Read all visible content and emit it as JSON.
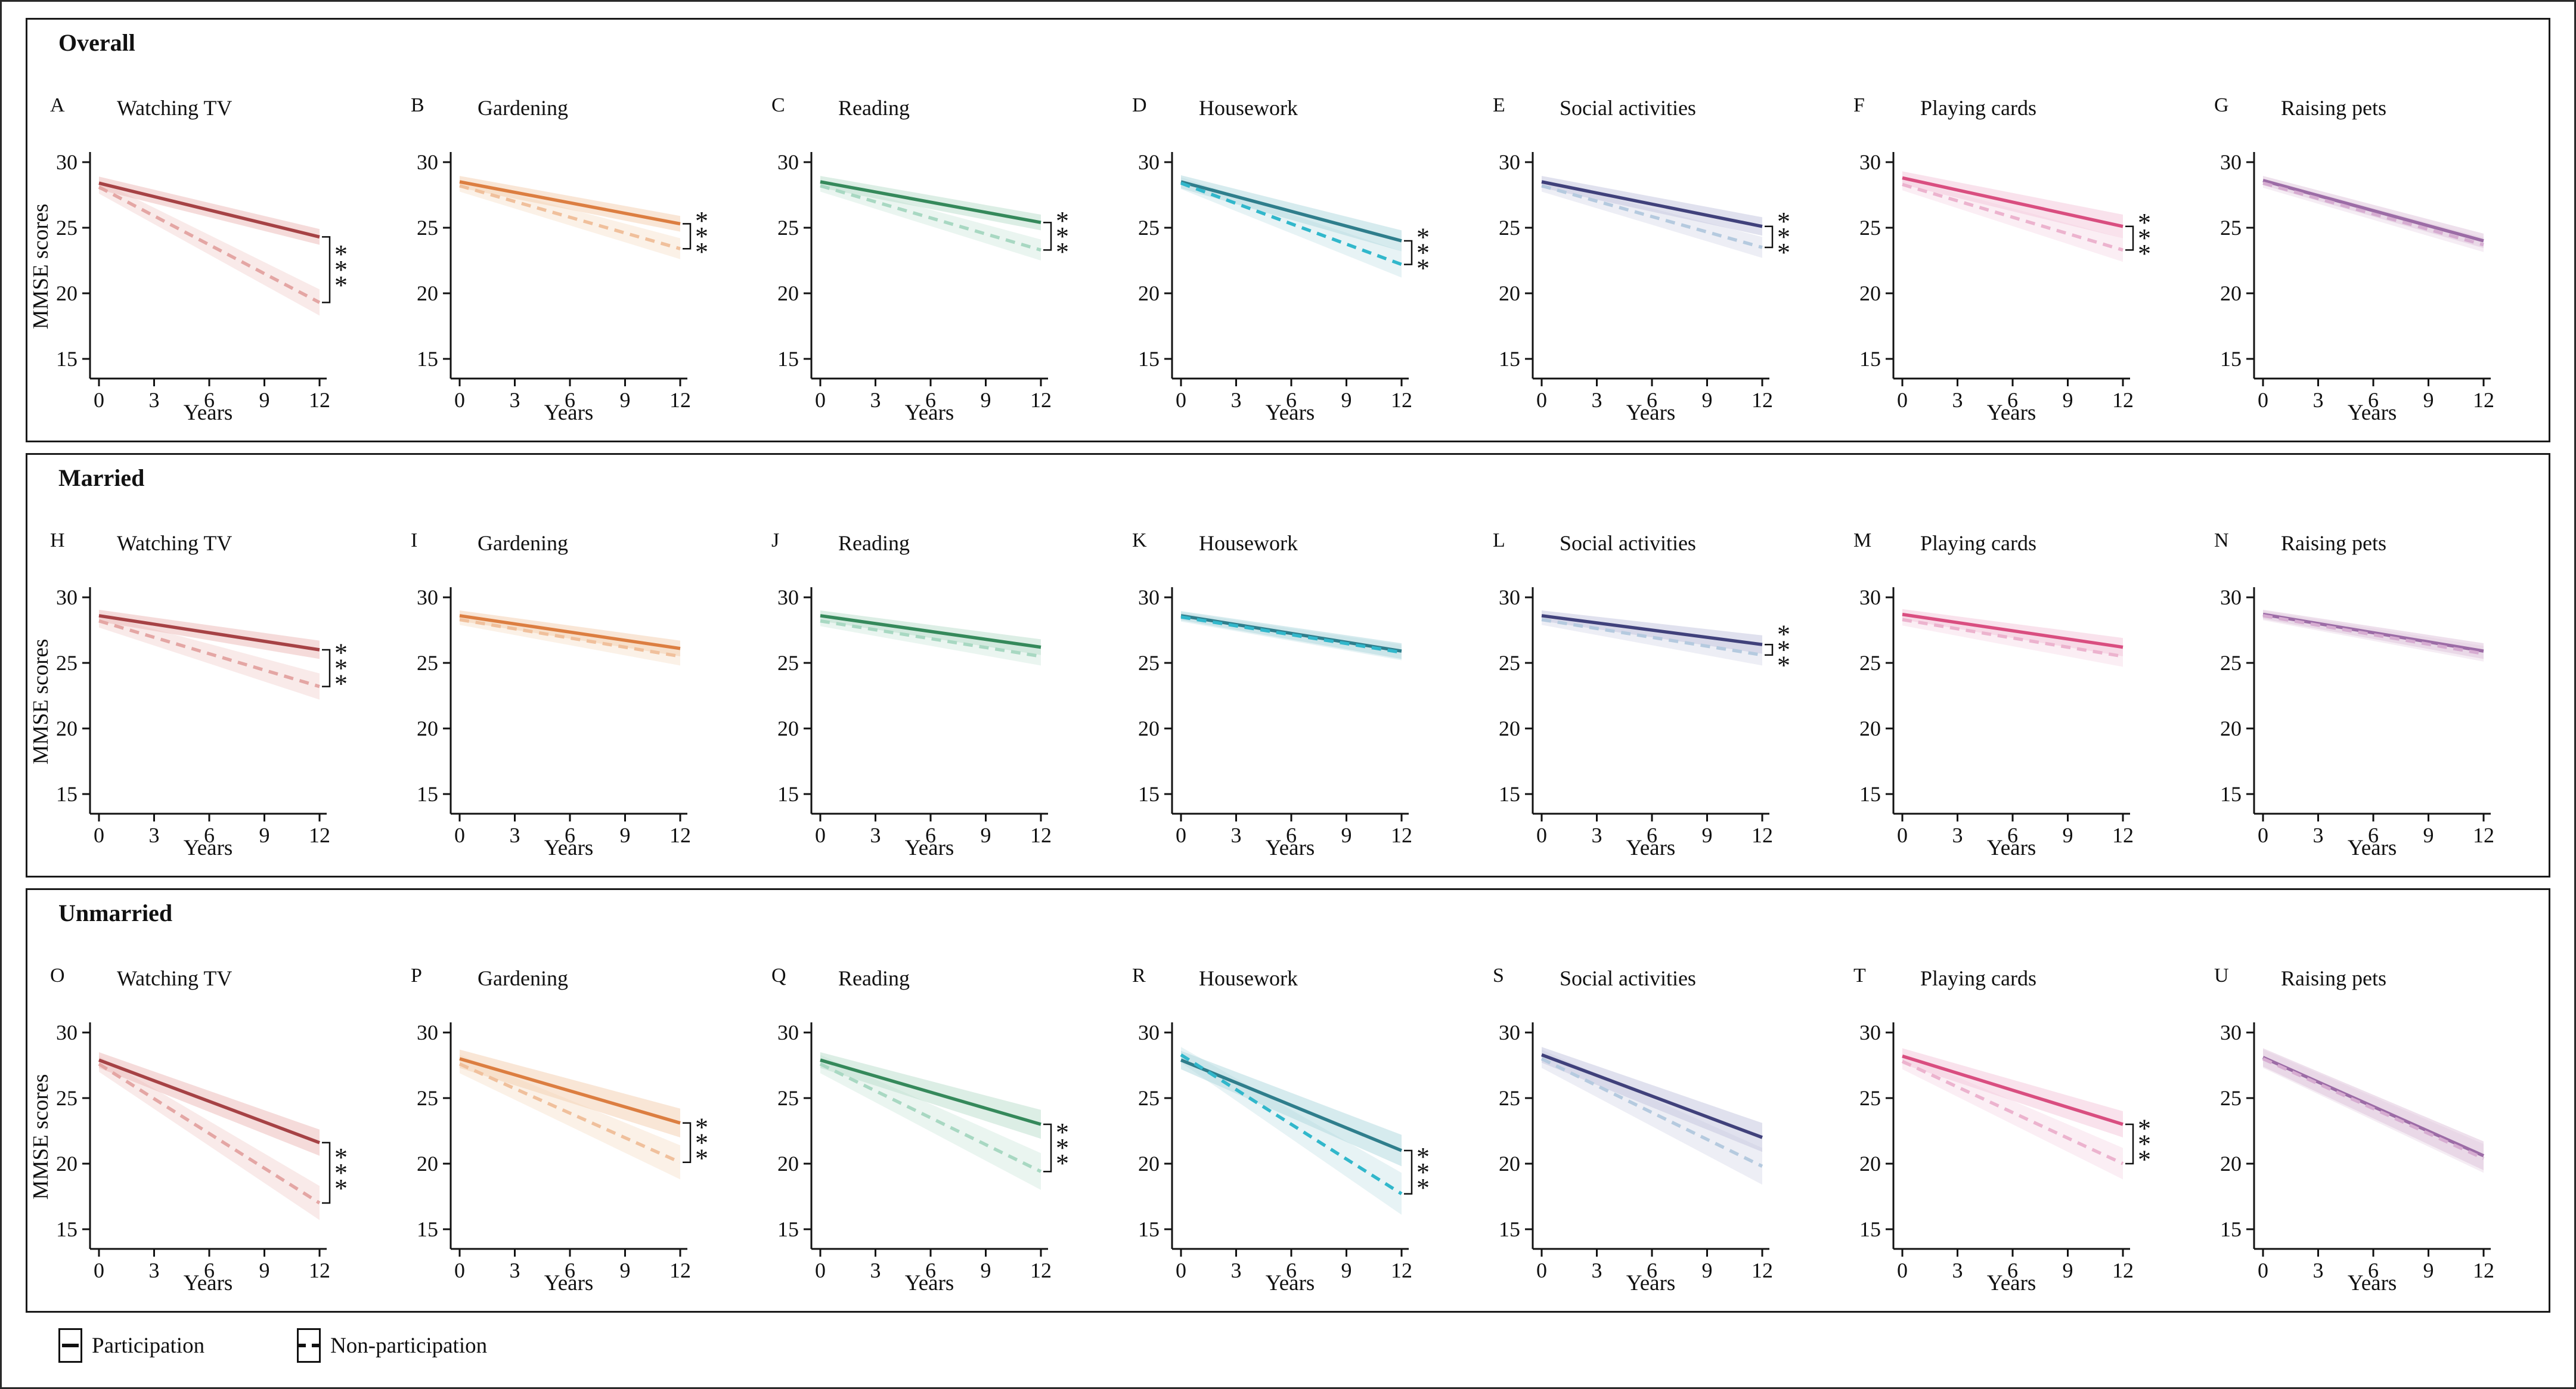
{
  "legend": [
    {
      "label": "Participation",
      "style": "solid"
    },
    {
      "label": "Non-participation",
      "style": "dashed"
    }
  ],
  "palette": {
    "watching_tv": {
      "solid": "#A64245",
      "dashed": "#E4A6A4",
      "band": "#ECBDBB"
    },
    "gardening": {
      "solid": "#DC7E41",
      "dashed": "#F0C09C",
      "band": "#F4D2B4"
    },
    "reading": {
      "solid": "#35895B",
      "dashed": "#A8D8C2",
      "band": "#BFE0CF"
    },
    "housework": {
      "solid": "#2F7E8C",
      "dashed": "#31B7CB",
      "band": "#B5DAE0"
    },
    "social": {
      "solid": "#40417B",
      "dashed": "#B5CADF",
      "band": "#C6C9E0"
    },
    "playing_cards": {
      "solid": "#D94E80",
      "dashed": "#ECB3CE",
      "band": "#F4CBDD"
    },
    "raising_pets": {
      "solid": "#9C6CA6",
      "dashed": "#D6ACD1",
      "band": "#E0C6DD"
    }
  },
  "chart_data": {
    "type": "line",
    "xlabel": "Years",
    "ylabel": "MMSE scores",
    "x_ticks": [
      0,
      3,
      6,
      9,
      12
    ],
    "y_ticks": [
      15,
      20,
      25,
      30
    ],
    "x_range": [
      0,
      12
    ],
    "y_range": [
      15,
      30
    ],
    "series_styles": [
      "Participation (solid)",
      "Non-participation (dashed)"
    ],
    "sections": [
      {
        "label": "Overall",
        "panels": [
          {
            "letter": "A",
            "title": "Watching TV",
            "palette": "watching_tv",
            "participation": {
              "start": 28.4,
              "end": 24.3,
              "ci_start": 0.5,
              "ci_end": 0.6
            },
            "non_participation": {
              "start": 28.1,
              "end": 19.3,
              "ci_start": 0.5,
              "ci_end": 1.0
            },
            "significance": "***"
          },
          {
            "letter": "B",
            "title": "Gardening",
            "palette": "gardening",
            "participation": {
              "start": 28.5,
              "end": 25.3,
              "ci_start": 0.45,
              "ci_end": 0.6
            },
            "non_participation": {
              "start": 28.2,
              "end": 23.4,
              "ci_start": 0.45,
              "ci_end": 0.8
            },
            "significance": "***"
          },
          {
            "letter": "C",
            "title": "Reading",
            "palette": "reading",
            "participation": {
              "start": 28.5,
              "end": 25.4,
              "ci_start": 0.45,
              "ci_end": 0.6
            },
            "non_participation": {
              "start": 28.2,
              "end": 23.3,
              "ci_start": 0.45,
              "ci_end": 0.8
            },
            "significance": "***"
          },
          {
            "letter": "D",
            "title": "Housework",
            "palette": "housework",
            "participation": {
              "start": 28.5,
              "end": 24.0,
              "ci_start": 0.5,
              "ci_end": 0.8
            },
            "non_participation": {
              "start": 28.4,
              "end": 22.2,
              "ci_start": 0.45,
              "ci_end": 1.0
            },
            "significance": "***"
          },
          {
            "letter": "E",
            "title": "Social activities",
            "palette": "social",
            "participation": {
              "start": 28.5,
              "end": 25.1,
              "ci_start": 0.45,
              "ci_end": 0.7
            },
            "non_participation": {
              "start": 28.2,
              "end": 23.5,
              "ci_start": 0.45,
              "ci_end": 0.8
            },
            "significance": "***"
          },
          {
            "letter": "F",
            "title": "Playing cards",
            "palette": "playing_cards",
            "participation": {
              "start": 28.8,
              "end": 25.1,
              "ci_start": 0.5,
              "ci_end": 0.9
            },
            "non_participation": {
              "start": 28.3,
              "end": 23.3,
              "ci_start": 0.45,
              "ci_end": 0.9
            },
            "significance": "***"
          },
          {
            "letter": "G",
            "title": "Raising pets",
            "palette": "raising_pets",
            "participation": {
              "start": 28.6,
              "end": 24.0,
              "ci_start": 0.35,
              "ci_end": 0.55
            },
            "non_participation": {
              "start": 28.4,
              "end": 23.7,
              "ci_start": 0.35,
              "ci_end": 0.55
            },
            "significance": null
          }
        ]
      },
      {
        "label": "Married",
        "panels": [
          {
            "letter": "H",
            "title": "Watching TV",
            "palette": "watching_tv",
            "participation": {
              "start": 28.6,
              "end": 26.0,
              "ci_start": 0.45,
              "ci_end": 0.7
            },
            "non_participation": {
              "start": 28.2,
              "end": 23.2,
              "ci_start": 0.5,
              "ci_end": 1.0
            },
            "significance": "***"
          },
          {
            "letter": "I",
            "title": "Gardening",
            "palette": "gardening",
            "participation": {
              "start": 28.6,
              "end": 26.1,
              "ci_start": 0.4,
              "ci_end": 0.6
            },
            "non_participation": {
              "start": 28.3,
              "end": 25.5,
              "ci_start": 0.4,
              "ci_end": 0.7
            },
            "significance": null
          },
          {
            "letter": "J",
            "title": "Reading",
            "palette": "reading",
            "participation": {
              "start": 28.6,
              "end": 26.2,
              "ci_start": 0.4,
              "ci_end": 0.6
            },
            "non_participation": {
              "start": 28.2,
              "end": 25.5,
              "ci_start": 0.4,
              "ci_end": 0.7
            },
            "significance": null
          },
          {
            "letter": "K",
            "title": "Housework",
            "palette": "housework",
            "participation": {
              "start": 28.6,
              "end": 25.9,
              "ci_start": 0.35,
              "ci_end": 0.6
            },
            "non_participation": {
              "start": 28.5,
              "end": 25.8,
              "ci_start": 0.35,
              "ci_end": 0.6
            },
            "significance": null
          },
          {
            "letter": "L",
            "title": "Social activities",
            "palette": "social",
            "participation": {
              "start": 28.6,
              "end": 26.4,
              "ci_start": 0.4,
              "ci_end": 0.7
            },
            "non_participation": {
              "start": 28.3,
              "end": 25.6,
              "ci_start": 0.4,
              "ci_end": 0.8
            },
            "significance": "***"
          },
          {
            "letter": "M",
            "title": "Playing cards",
            "palette": "playing_cards",
            "participation": {
              "start": 28.7,
              "end": 26.2,
              "ci_start": 0.4,
              "ci_end": 0.7
            },
            "non_participation": {
              "start": 28.3,
              "end": 25.5,
              "ci_start": 0.45,
              "ci_end": 0.8
            },
            "significance": null
          },
          {
            "letter": "N",
            "title": "Raising pets",
            "palette": "raising_pets",
            "participation": {
              "start": 28.7,
              "end": 25.9,
              "ci_start": 0.35,
              "ci_end": 0.6
            },
            "non_participation": {
              "start": 28.6,
              "end": 25.7,
              "ci_start": 0.35,
              "ci_end": 0.6
            },
            "significance": null
          }
        ]
      },
      {
        "label": "Unmarried",
        "panels": [
          {
            "letter": "O",
            "title": "Watching TV",
            "palette": "watching_tv",
            "participation": {
              "start": 27.9,
              "end": 21.6,
              "ci_start": 0.6,
              "ci_end": 1.0
            },
            "non_participation": {
              "start": 27.6,
              "end": 17.0,
              "ci_start": 0.6,
              "ci_end": 1.3
            },
            "significance": "***"
          },
          {
            "letter": "P",
            "title": "Gardening",
            "palette": "gardening",
            "participation": {
              "start": 28.0,
              "end": 23.1,
              "ci_start": 0.7,
              "ci_end": 1.1
            },
            "non_participation": {
              "start": 27.6,
              "end": 20.1,
              "ci_start": 0.7,
              "ci_end": 1.3
            },
            "significance": "***"
          },
          {
            "letter": "Q",
            "title": "Reading",
            "palette": "reading",
            "participation": {
              "start": 27.9,
              "end": 23.0,
              "ci_start": 0.6,
              "ci_end": 1.1
            },
            "non_participation": {
              "start": 27.6,
              "end": 19.4,
              "ci_start": 0.7,
              "ci_end": 1.4
            },
            "significance": "***"
          },
          {
            "letter": "R",
            "title": "Housework",
            "palette": "housework",
            "participation": {
              "start": 27.9,
              "end": 21.0,
              "ci_start": 0.7,
              "ci_end": 1.2
            },
            "non_participation": {
              "start": 28.3,
              "end": 17.7,
              "ci_start": 0.6,
              "ci_end": 1.6
            },
            "significance": "***"
          },
          {
            "letter": "S",
            "title": "Social activities",
            "palette": "social",
            "participation": {
              "start": 28.3,
              "end": 22.0,
              "ci_start": 0.6,
              "ci_end": 1.1
            },
            "non_participation": {
              "start": 28.0,
              "end": 19.8,
              "ci_start": 0.7,
              "ci_end": 1.4
            },
            "significance": null
          },
          {
            "letter": "T",
            "title": "Playing cards",
            "palette": "playing_cards",
            "participation": {
              "start": 28.2,
              "end": 23.0,
              "ci_start": 0.6,
              "ci_end": 1.0
            },
            "non_participation": {
              "start": 27.8,
              "end": 20.0,
              "ci_start": 0.6,
              "ci_end": 1.2
            },
            "significance": "***"
          },
          {
            "letter": "U",
            "title": "Raising pets",
            "palette": "raising_pets",
            "participation": {
              "start": 28.1,
              "end": 20.6,
              "ci_start": 0.7,
              "ci_end": 1.1
            },
            "non_participation": {
              "start": 28.0,
              "end": 20.4,
              "ci_start": 0.7,
              "ci_end": 1.1
            },
            "significance": null
          }
        ]
      }
    ]
  }
}
